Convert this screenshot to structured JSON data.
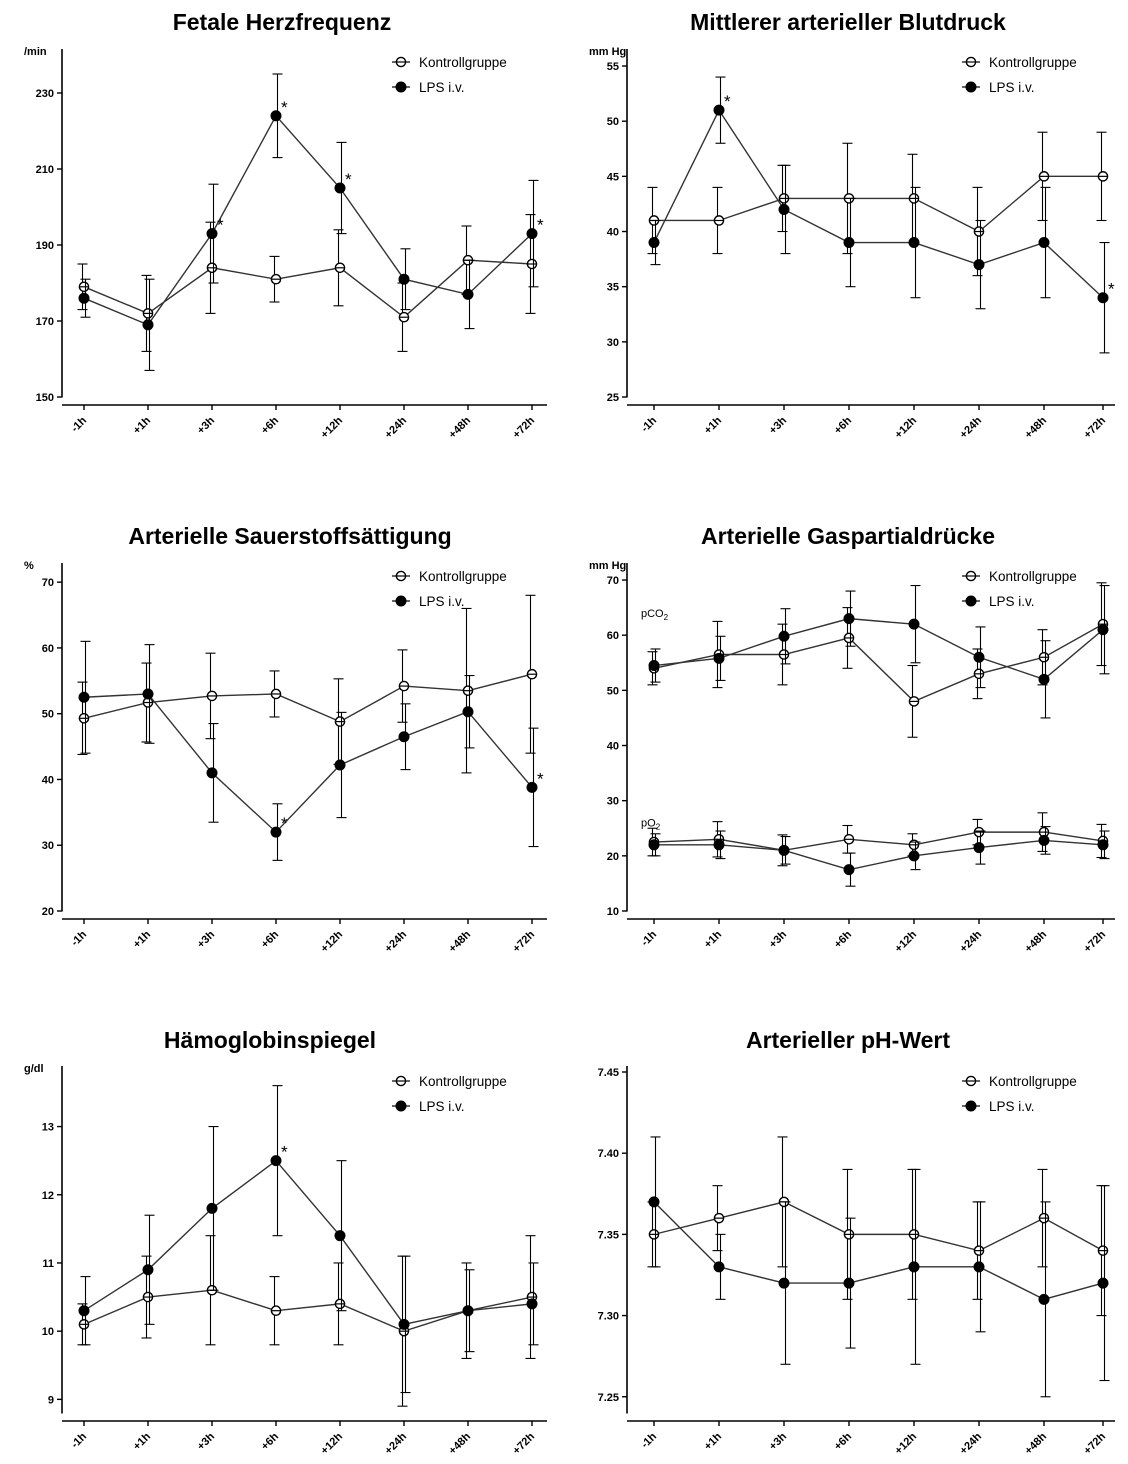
{
  "colors": {
    "axis": "#000000",
    "line": "#333333",
    "filled": "#000000",
    "open": "#ffffff"
  },
  "charts": [
    {
      "type": "line",
      "title": "Fetale Herzfrequenz",
      "unit": "/min",
      "x": [
        "-1h",
        "+1h",
        "+3h",
        "+6h",
        "+12h",
        "+24h",
        "+48h",
        "+72h"
      ],
      "ylim": [
        150,
        240
      ],
      "yticks": [
        150,
        170,
        190,
        210,
        230
      ],
      "legend": [
        "Kontrollgruppe",
        "LPS i.v."
      ],
      "series": [
        {
          "name": "Kontrollgruppe",
          "marker": "open",
          "values": [
            179,
            172,
            184,
            181,
            184,
            171,
            186,
            185
          ],
          "err": [
            6,
            10,
            12,
            6,
            10,
            9,
            9,
            13
          ]
        },
        {
          "name": "LPS i.v.",
          "marker": "filled",
          "values": [
            176,
            169,
            193,
            224,
            205,
            181,
            177,
            193
          ],
          "err": [
            5,
            12,
            13,
            11,
            12,
            8,
            9,
            14
          ],
          "stars": [
            2,
            3,
            4,
            7
          ]
        }
      ]
    },
    {
      "type": "line",
      "title": "Mittlerer arterieller Blutdruck",
      "unit": "mm Hg",
      "x": [
        "-1h",
        "+1h",
        "+3h",
        "+6h",
        "+12h",
        "+24h",
        "+48h",
        "+72h"
      ],
      "ylim": [
        25,
        56
      ],
      "yticks": [
        25,
        30,
        35,
        40,
        45,
        50,
        55
      ],
      "legend": [
        "Kontrollgruppe",
        "LPS i.v."
      ],
      "series": [
        {
          "name": "Kontrollgruppe",
          "marker": "open",
          "values": [
            41,
            41,
            43,
            43,
            43,
            40,
            45,
            45
          ],
          "err": [
            3,
            3,
            3,
            5,
            4,
            4,
            4,
            4
          ]
        },
        {
          "name": "LPS i.v.",
          "marker": "filled",
          "values": [
            39,
            51,
            42,
            39,
            39,
            37,
            39,
            34
          ],
          "err": [
            2,
            3,
            4,
            4,
            5,
            4,
            5,
            5
          ],
          "stars": [
            1,
            7
          ]
        }
      ]
    },
    {
      "type": "line",
      "title": "Arterielle Sauerstoffsättigung",
      "unit": "%",
      "x": [
        "-1h",
        "+1h",
        "+3h",
        "+6h",
        "+12h",
        "+24h",
        "+48h",
        "+72h"
      ],
      "ylim": [
        20,
        72
      ],
      "yticks": [
        20,
        30,
        40,
        50,
        60,
        70
      ],
      "legend": [
        "Kontrollgruppe",
        "LPS i.v."
      ],
      "series": [
        {
          "name": "Kontrollgruppe",
          "marker": "open",
          "values": [
            49.3,
            51.7,
            52.7,
            53,
            48.8,
            54.2,
            53.5,
            56
          ],
          "err": [
            5.5,
            6,
            6.5,
            3.5,
            6.5,
            5.5,
            12.5,
            12
          ]
        },
        {
          "name": "LPS i.v.",
          "marker": "filled",
          "values": [
            52.5,
            53,
            41,
            32,
            42.2,
            46.5,
            50.3,
            38.8
          ],
          "err": [
            8.5,
            7.5,
            7.5,
            4.3,
            8,
            5,
            5.5,
            9
          ],
          "stars": [
            3,
            7
          ]
        }
      ]
    },
    {
      "type": "line",
      "title": "Arterielle Gaspartialdrücke",
      "unit": "mm Hg",
      "x": [
        "-1h",
        "+1h",
        "+3h",
        "+6h",
        "+12h",
        "+24h",
        "+48h",
        "+72h"
      ],
      "ylim": [
        10,
        72
      ],
      "yticks": [
        10,
        20,
        30,
        40,
        50,
        60,
        70
      ],
      "legend": [
        "Kontrollgruppe",
        "LPS i.v."
      ],
      "sublabels": [
        {
          "base": "pCO",
          "sub": "2",
          "y": 64
        },
        {
          "base": "pO",
          "sub": "2",
          "y": 26
        }
      ],
      "series": [
        {
          "name": "Kontrollgruppe",
          "marker": "open",
          "values": [
            54,
            56.5,
            56.5,
            59.5,
            48,
            53,
            56,
            62
          ],
          "err": [
            3,
            6,
            5.5,
            5.5,
            6.5,
            4.5,
            5,
            7.5
          ]
        },
        {
          "name": "LPS i.v.",
          "marker": "filled",
          "values": [
            54.5,
            55.8,
            59.8,
            63,
            62,
            56,
            52,
            61
          ],
          "err": [
            3,
            4,
            5,
            5,
            7,
            5.5,
            7,
            8
          ]
        },
        {
          "name": "Kontrollgruppe",
          "marker": "open",
          "values": [
            22.5,
            23,
            21,
            23,
            22,
            24.3,
            24.3,
            22.7
          ],
          "err": [
            2.5,
            3.2,
            2.8,
            2.5,
            2,
            2.3,
            3.5,
            3
          ]
        },
        {
          "name": "LPS i.v.",
          "marker": "filled",
          "values": [
            22,
            22,
            21,
            17.5,
            20,
            21.5,
            22.8,
            22
          ],
          "err": [
            2,
            2.5,
            2.5,
            3,
            2.5,
            3,
            2.5,
            2.5
          ]
        }
      ]
    },
    {
      "type": "line",
      "title": "Hämoglobinspiegel",
      "unit": "g/dl",
      "x": [
        "-1h",
        "+1h",
        "+3h",
        "+6h",
        "+12h",
        "+24h",
        "+48h",
        "+72h"
      ],
      "ylim": [
        8.8,
        13.8
      ],
      "yticks": [
        9,
        10,
        11,
        12,
        13
      ],
      "legend": [
        "Kontrollgruppe",
        "LPS i.v."
      ],
      "series": [
        {
          "name": "Kontrollgruppe",
          "marker": "open",
          "values": [
            10.1,
            10.5,
            10.6,
            10.3,
            10.4,
            10.0,
            10.3,
            10.5
          ],
          "err": [
            0.3,
            0.6,
            0.8,
            0.5,
            0.6,
            1.1,
            0.7,
            0.9
          ]
        },
        {
          "name": "LPS i.v.",
          "marker": "filled",
          "values": [
            10.3,
            10.9,
            11.8,
            12.5,
            11.4,
            10.1,
            10.3,
            10.4
          ],
          "err": [
            0.5,
            0.8,
            1.2,
            1.1,
            1.1,
            1.0,
            0.6,
            0.6
          ],
          "stars": [
            3
          ]
        }
      ]
    },
    {
      "type": "line",
      "title": "Arterieller pH-Wert",
      "unit": "",
      "x": [
        "-1h",
        "+1h",
        "+3h",
        "+6h",
        "+12h",
        "+24h",
        "+48h",
        "+72h"
      ],
      "ylim": [
        7.24,
        7.45
      ],
      "yticks": [
        "7.25",
        "7.30",
        "7.35",
        "7.40",
        "7.45"
      ],
      "legend": [
        "Kontrollgruppe",
        "LPS i.v."
      ],
      "series": [
        {
          "name": "Kontrollgruppe",
          "marker": "open",
          "values": [
            7.35,
            7.36,
            7.37,
            7.35,
            7.35,
            7.34,
            7.36,
            7.34
          ],
          "err": [
            0.02,
            0.02,
            0.04,
            0.04,
            0.04,
            0.03,
            0.03,
            0.04
          ]
        },
        {
          "name": "LPS i.v.",
          "marker": "filled",
          "values": [
            7.37,
            7.33,
            7.32,
            7.32,
            7.33,
            7.33,
            7.31,
            7.32
          ],
          "err": [
            0.04,
            0.02,
            0.05,
            0.04,
            0.06,
            0.04,
            0.06,
            0.06
          ]
        }
      ]
    }
  ]
}
